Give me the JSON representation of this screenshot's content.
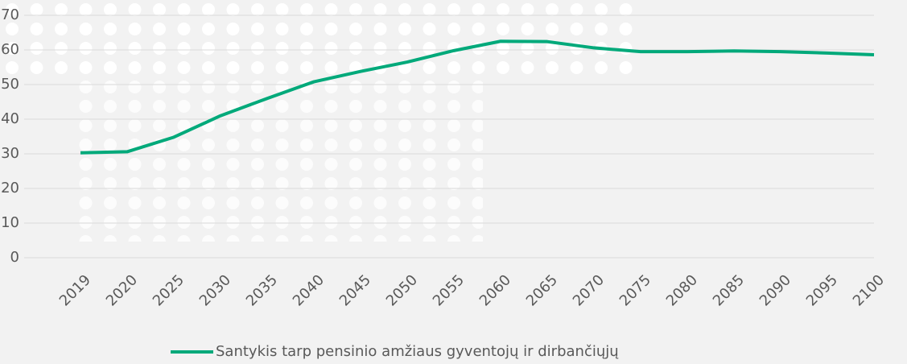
{
  "chart_data": {
    "type": "line",
    "categories": [
      "2019",
      "2020",
      "2025",
      "2030",
      "2035",
      "2040",
      "2045",
      "2050",
      "2055",
      "2060",
      "2065",
      "2070",
      "2075",
      "2080",
      "2085",
      "2090",
      "2095",
      "2100"
    ],
    "series": [
      {
        "name": "Santykis tarp pensinio amžiaus gyventojų ir dirbančiųjų",
        "color": "#00a97a",
        "values": [
          30.3,
          30.6,
          34.8,
          41,
          46,
          50.8,
          53.8,
          56.5,
          59.8,
          62.5,
          62.4,
          60.6,
          59.5,
          59.5,
          59.7,
          59.5,
          59.1,
          58.6
        ]
      }
    ],
    "ylim": [
      0,
      70
    ],
    "yticks": [
      0,
      10,
      20,
      30,
      40,
      50,
      60,
      70
    ],
    "grid": true,
    "legend": "bottom"
  }
}
